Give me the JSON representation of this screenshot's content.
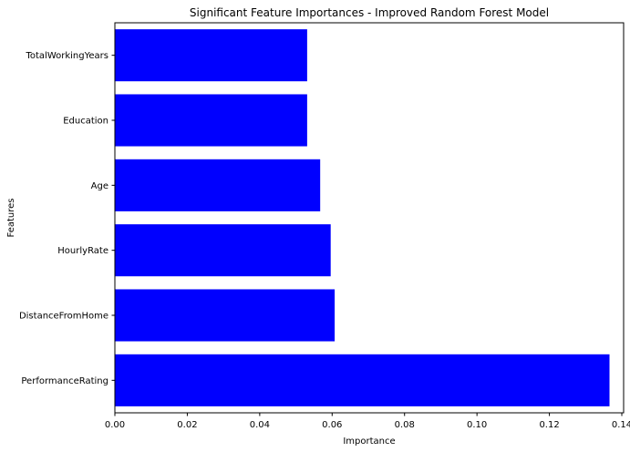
{
  "chart_data": {
    "type": "bar",
    "orientation": "horizontal",
    "title": "Significant Feature Importances - Improved Random Forest Model",
    "xlabel": "Importance",
    "ylabel": "Features",
    "categories": [
      "PerformanceRating",
      "DistanceFromHome",
      "HourlyRate",
      "Age",
      "Education",
      "TotalWorkingYears"
    ],
    "values": [
      0.1366,
      0.0607,
      0.0596,
      0.0567,
      0.0531,
      0.0531
    ],
    "xlim": [
      0,
      0.1405
    ],
    "xticks": [
      0.0,
      0.02,
      0.04,
      0.06,
      0.08,
      0.1,
      0.12,
      0.14
    ],
    "xtick_labels": [
      "0.00",
      "0.02",
      "0.04",
      "0.06",
      "0.08",
      "0.10",
      "0.12",
      "0.14"
    ],
    "bar_color": "#0000ff",
    "grid": false,
    "legend": "none"
  }
}
